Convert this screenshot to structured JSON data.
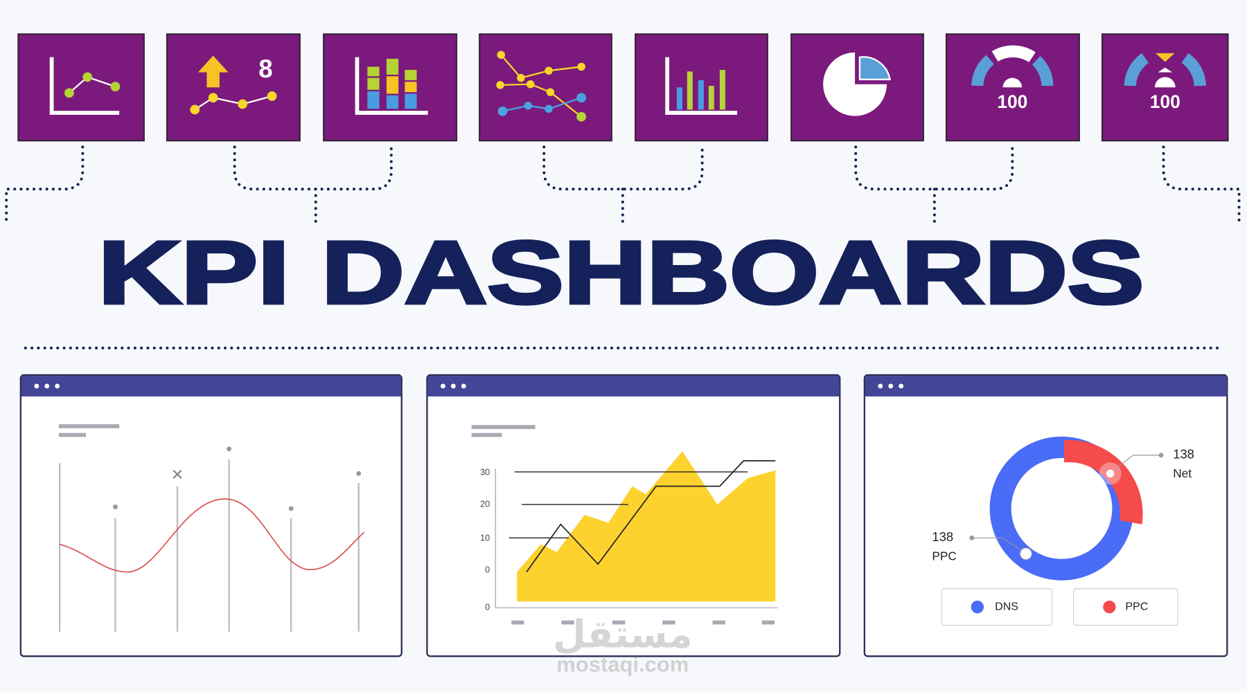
{
  "icon_texts": [
    "8",
    "100",
    "100"
  ],
  "title": "KPI DASHBOARDS",
  "area_chart": {
    "y_labels": [
      "30",
      "20",
      "10",
      "0",
      "0"
    ]
  },
  "donut_chart": {
    "callouts": [
      {
        "value": "138",
        "label": "Net"
      },
      {
        "value": "138",
        "label": "PPC"
      }
    ],
    "legend": [
      "DNS",
      "PPC"
    ]
  },
  "watermark": {
    "arabic": "مستقل",
    "latin": "mostaqi.com"
  }
}
